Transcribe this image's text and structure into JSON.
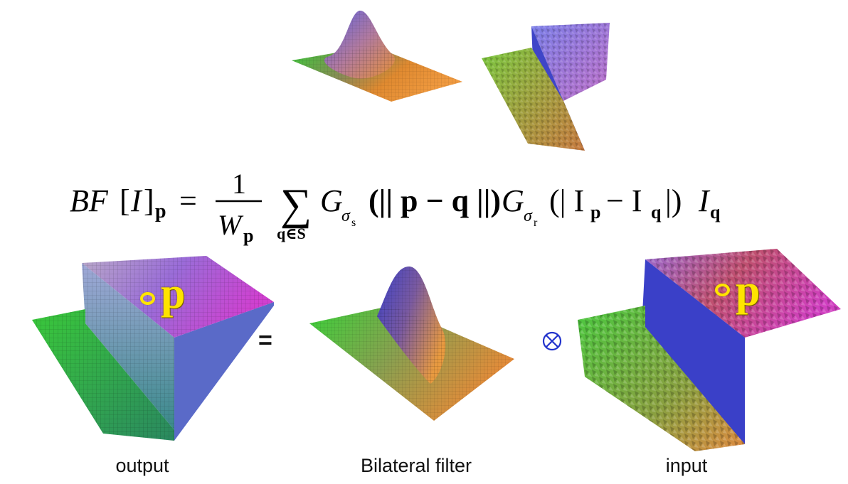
{
  "formula": {
    "lhs_main": "BF",
    "lhs_bracket_open": "[",
    "lhs_I": "I",
    "lhs_bracket_close": "]",
    "lhs_sub": "p",
    "equals": "=",
    "frac_num": "1",
    "frac_den": "W",
    "frac_den_sub": "p",
    "sum_symbol": "∑",
    "sum_sub": "q∈S",
    "g1": "G",
    "g1_sub": "σ",
    "g1_subsub": "s",
    "g1_arg": "(|| p − q ||)",
    "g2": "G",
    "g2_sub": "σ",
    "g2_subsub": "r",
    "g2_arg_open": "(| I",
    "g2_arg_p": "p",
    "g2_arg_minus": " − I",
    "g2_arg_q": "q",
    "g2_arg_close": " |)",
    "tail_I": "I",
    "tail_sub": "q"
  },
  "bottom_row": {
    "equals_sign": "=",
    "operator_glyph": "⊗",
    "output_point_label": "p",
    "input_point_label": "p"
  },
  "captions": {
    "output": "output",
    "bilateral": "Bilateral filter",
    "input": "input"
  },
  "colors": {
    "gradient_green": "#3fd23a",
    "gradient_orange": "#e08a30",
    "gradient_blue": "#4b4fd8",
    "gradient_magenta": "#d23fd8",
    "point_marker": "#ffe400",
    "operator": "#2233cc"
  }
}
